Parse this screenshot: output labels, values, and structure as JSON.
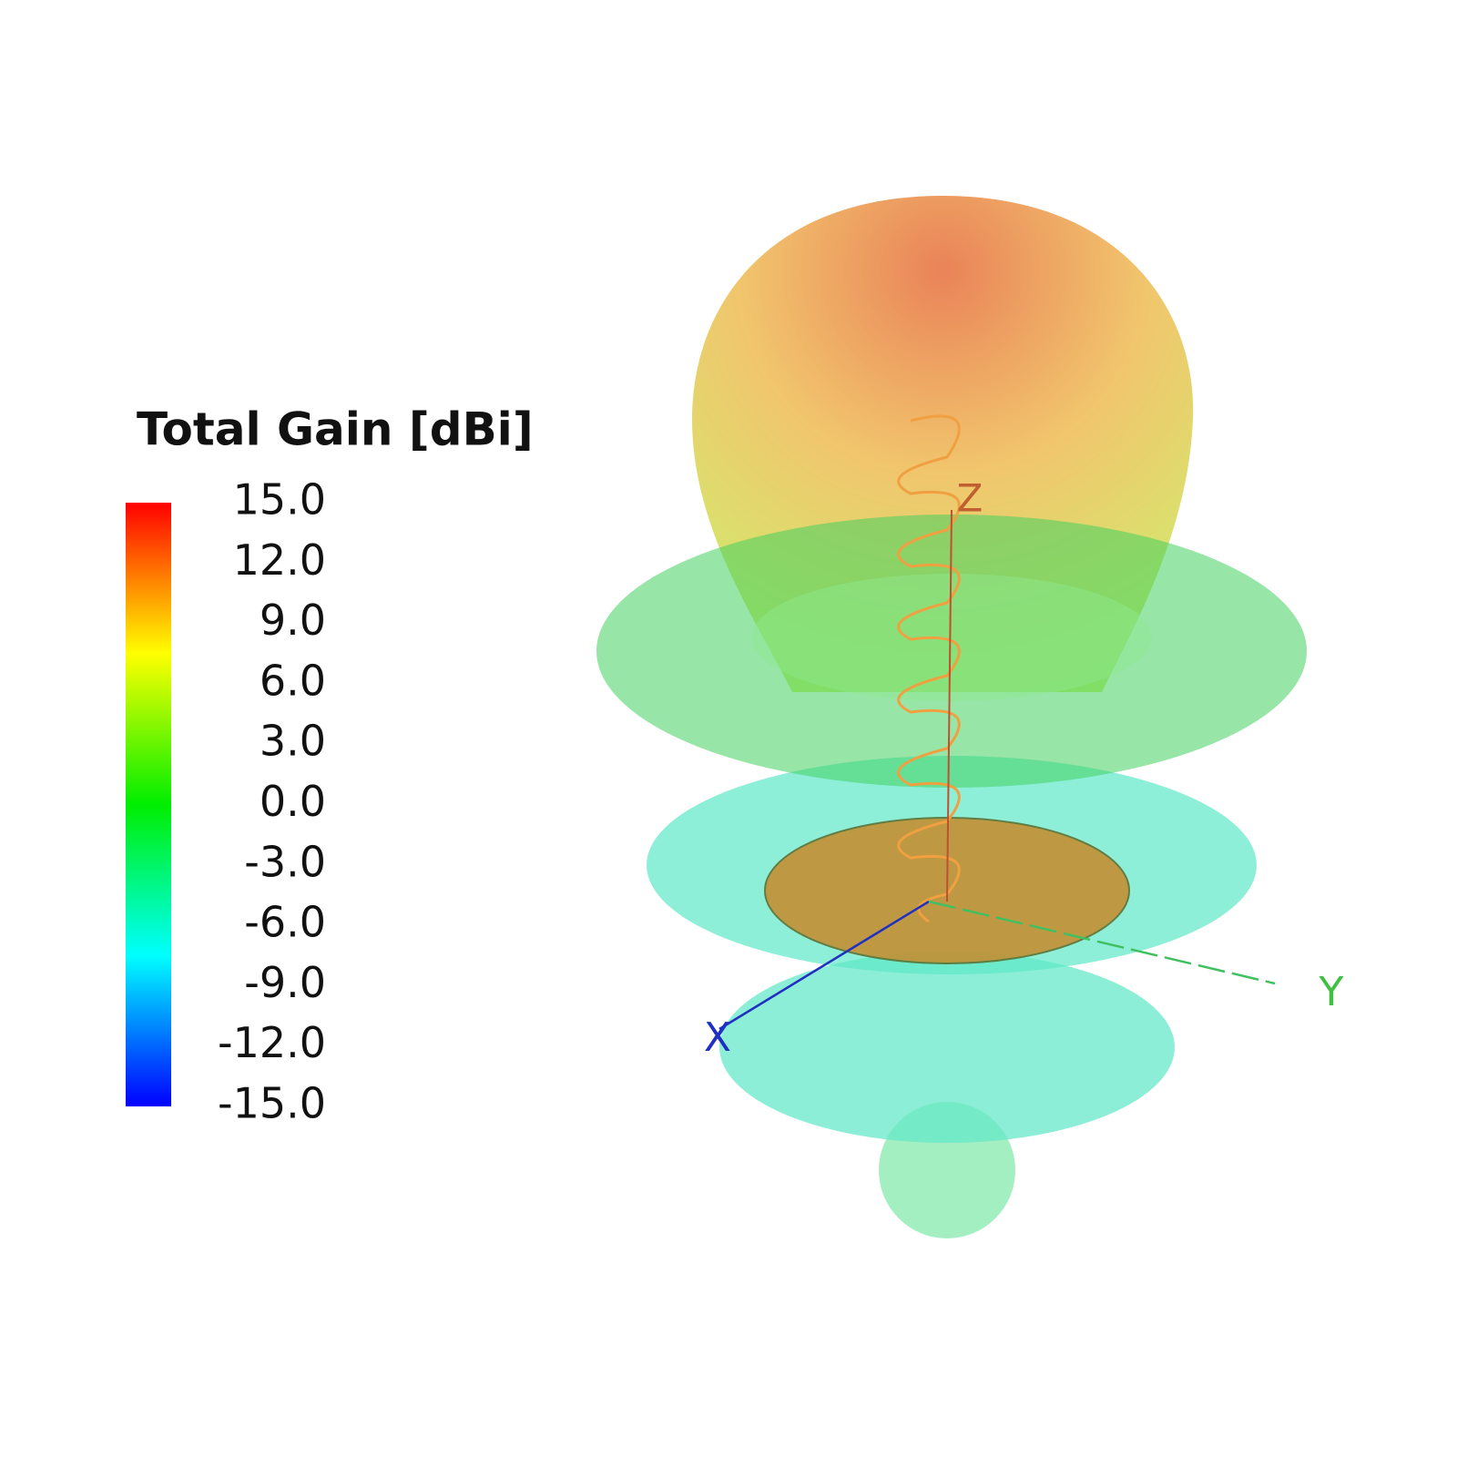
{
  "chart_data": {
    "type": "radiation-pattern",
    "colorbar": {
      "title": "Total Gain [dBi]",
      "ticks": [
        {
          "value": 15,
          "label": "15.0"
        },
        {
          "value": 12,
          "label": "12.0"
        },
        {
          "value": 9,
          "label": "9.0"
        },
        {
          "value": 6,
          "label": "6.0"
        },
        {
          "value": 3,
          "label": "3.0"
        },
        {
          "value": 0,
          "label": "0.0"
        },
        {
          "value": -3,
          "label": "-3.0"
        },
        {
          "value": -6,
          "label": "-6.0"
        },
        {
          "value": -9,
          "label": "-9.0"
        },
        {
          "value": -12,
          "label": "-12.0"
        },
        {
          "value": -15,
          "label": "-15.0"
        }
      ],
      "colormap": [
        "#0000ff",
        "#00ffff",
        "#00ee00",
        "#ffff00",
        "#ff0000"
      ]
    },
    "axis_labels": {
      "x": "X",
      "y": "Y",
      "z": "Z"
    }
  }
}
